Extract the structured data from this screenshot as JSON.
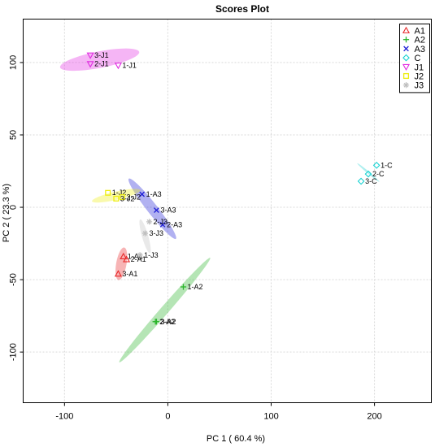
{
  "chart_data": {
    "type": "scatter",
    "title": "Scores Plot",
    "xlabel": "PC 1 ( 60.4 %)",
    "ylabel": "PC 2 ( 23.3 %)",
    "xlim": [
      -140,
      255
    ],
    "ylim": [
      -135,
      130
    ],
    "xticks": [
      -100,
      0,
      100,
      200
    ],
    "yticks": [
      -100,
      -50,
      0,
      50,
      100
    ],
    "grid": true,
    "legend_position": "top-right",
    "series": [
      {
        "name": "A1",
        "color": "#e8292a",
        "marker": "triangle",
        "points": [
          {
            "label": "1-A1",
            "x": -43,
            "y": -34
          },
          {
            "label": "2-A1",
            "x": -40,
            "y": -36
          },
          {
            "label": "3-A1",
            "x": -48,
            "y": -46
          }
        ],
        "ellipse": {
          "cx": -45,
          "cy": -39,
          "rx": 16,
          "ry": 5,
          "angle": -80
        }
      },
      {
        "name": "A2",
        "color": "#2bb52b",
        "marker": "plus",
        "points": [
          {
            "label": "1-A2",
            "x": 15,
            "y": -55
          },
          {
            "label": "2-A2",
            "x": -12,
            "y": -79
          },
          {
            "label": "3-A2",
            "x": -11,
            "y": -79
          }
        ],
        "ellipse": {
          "cx": -3,
          "cy": -71,
          "rx": 67,
          "ry": 4,
          "angle": -49
        }
      },
      {
        "name": "A3",
        "color": "#1f1fd6",
        "marker": "x",
        "points": [
          {
            "label": "1-A3",
            "x": -25,
            "y": 9
          },
          {
            "label": "2-A3",
            "x": -5,
            "y": -12
          },
          {
            "label": "3-A3",
            "x": -11,
            "y": -2
          }
        ],
        "ellipse": {
          "cx": -15,
          "cy": -1,
          "rx": 37,
          "ry": 5,
          "angle": 52
        }
      },
      {
        "name": "C",
        "color": "#19d2d2",
        "marker": "diamond",
        "points": [
          {
            "label": "1-C",
            "x": 202,
            "y": 29
          },
          {
            "label": "2-C",
            "x": 194,
            "y": 23
          },
          {
            "label": "3-C",
            "x": 187,
            "y": 18
          }
        ],
        "ellipse": {
          "cx": 194,
          "cy": 24,
          "rx": 14,
          "ry": 1,
          "angle": 40
        }
      },
      {
        "name": "J1",
        "color": "#e12ce1",
        "marker": "triangle-down",
        "points": [
          {
            "label": "1-J1",
            "x": -48,
            "y": 98
          },
          {
            "label": "2-J1",
            "x": -75,
            "y": 99
          },
          {
            "label": "3-J1",
            "x": -75,
            "y": 105
          }
        ],
        "ellipse": {
          "cx": -66,
          "cy": 102,
          "rx": 39,
          "ry": 8,
          "angle": -11
        }
      },
      {
        "name": "J2",
        "color": "#eded10",
        "marker": "square",
        "points": [
          {
            "label": "1-J2",
            "x": -58,
            "y": 10
          },
          {
            "label": "2-J2",
            "x": -44,
            "y": 7
          },
          {
            "label": "3-J2",
            "x": -50,
            "y": 6
          }
        ],
        "ellipse": {
          "cx": -50,
          "cy": 8,
          "rx": 24,
          "ry": 4,
          "angle": -13
        }
      },
      {
        "name": "J3",
        "color": "#bfbfbf",
        "marker": "star",
        "points": [
          {
            "label": "1-J3",
            "x": -27,
            "y": -33
          },
          {
            "label": "2-J3",
            "x": -18,
            "y": -10
          },
          {
            "label": "3-J3",
            "x": -22,
            "y": -18
          }
        ],
        "ellipse": {
          "cx": -22,
          "cy": -20,
          "rx": 17,
          "ry": 3,
          "angle": 74
        }
      }
    ]
  }
}
